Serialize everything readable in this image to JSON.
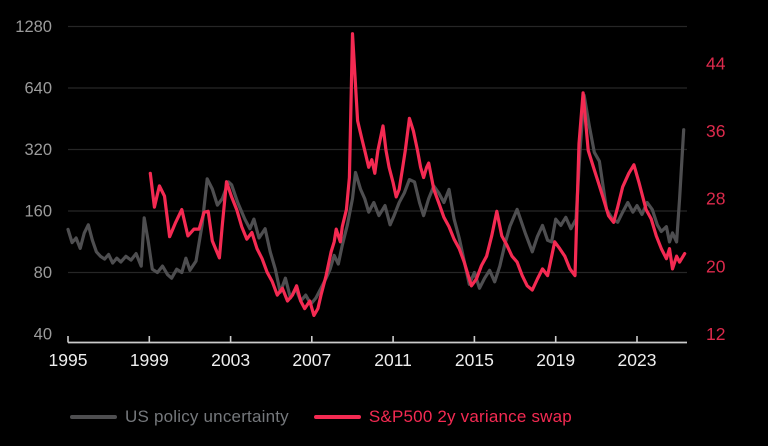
{
  "colors": {
    "background": "#000000",
    "grid": "#262626",
    "axis_line": "#cccccc",
    "x_tick_label": "#eeeeee",
    "left_tick_label": "#9b9b9b",
    "right_tick_label": "#dd2a4c",
    "gray_series": "#4e4e50",
    "red_series": "#f42a52",
    "legend_gray_text": "#75787c",
    "legend_red_text": "#f42a52"
  },
  "chart_data": {
    "type": "line",
    "title": "",
    "grid": "horizontal",
    "legend_position": "bottom",
    "x_axis": {
      "ticks": [
        1995,
        1999,
        2003,
        2007,
        2011,
        2015,
        2019,
        2023
      ],
      "range": [
        1995,
        2026
      ]
    },
    "left_axis": {
      "scale": "log2",
      "ticks": [
        40,
        80,
        160,
        320,
        640,
        1280
      ],
      "range": [
        40,
        1280
      ]
    },
    "right_axis": {
      "scale": "linear",
      "ticks": [
        12,
        20,
        28,
        36,
        44
      ],
      "range": [
        12,
        48.5
      ]
    },
    "series": [
      {
        "name": "US policy uncertainty",
        "axis": "left",
        "color": "#4e4e50",
        "points": [
          [
            1995.0,
            130
          ],
          [
            1995.2,
            112
          ],
          [
            1995.4,
            118
          ],
          [
            1995.6,
            105
          ],
          [
            1995.8,
            125
          ],
          [
            1996.0,
            137
          ],
          [
            1996.2,
            115
          ],
          [
            1996.4,
            101
          ],
          [
            1996.6,
            96
          ],
          [
            1996.8,
            93
          ],
          [
            1997.0,
            98
          ],
          [
            1997.2,
            89
          ],
          [
            1997.4,
            94
          ],
          [
            1997.6,
            90
          ],
          [
            1997.85,
            96
          ],
          [
            1998.1,
            92
          ],
          [
            1998.35,
            99
          ],
          [
            1998.6,
            86
          ],
          [
            1998.75,
            148
          ],
          [
            1998.95,
            113
          ],
          [
            1999.15,
            83
          ],
          [
            1999.4,
            80
          ],
          [
            1999.65,
            86
          ],
          [
            1999.9,
            78
          ],
          [
            2000.1,
            75
          ],
          [
            2000.35,
            83
          ],
          [
            2000.6,
            80
          ],
          [
            2000.8,
            94
          ],
          [
            2001.0,
            82
          ],
          [
            2001.3,
            91
          ],
          [
            2001.6,
            137
          ],
          [
            2001.85,
            230
          ],
          [
            2002.1,
            205
          ],
          [
            2002.35,
            171
          ],
          [
            2002.6,
            184
          ],
          [
            2002.9,
            222
          ],
          [
            2003.05,
            215
          ],
          [
            2003.35,
            176
          ],
          [
            2003.7,
            146
          ],
          [
            2003.95,
            131
          ],
          [
            2004.15,
            146
          ],
          [
            2004.4,
            118
          ],
          [
            2004.7,
            131
          ],
          [
            2004.95,
            101
          ],
          [
            2005.2,
            83
          ],
          [
            2005.45,
            64
          ],
          [
            2005.7,
            75
          ],
          [
            2005.95,
            60
          ],
          [
            2006.2,
            67
          ],
          [
            2006.45,
            58
          ],
          [
            2006.7,
            62
          ],
          [
            2006.95,
            56
          ],
          [
            2007.2,
            60
          ],
          [
            2007.45,
            67
          ],
          [
            2007.7,
            75
          ],
          [
            2007.9,
            83
          ],
          [
            2008.1,
            97
          ],
          [
            2008.3,
            88
          ],
          [
            2008.5,
            109
          ],
          [
            2008.75,
            137
          ],
          [
            2009.0,
            184
          ],
          [
            2009.15,
            247
          ],
          [
            2009.4,
            204
          ],
          [
            2009.6,
            184
          ],
          [
            2009.8,
            158
          ],
          [
            2010.05,
            176
          ],
          [
            2010.3,
            152
          ],
          [
            2010.6,
            170
          ],
          [
            2010.85,
            137
          ],
          [
            2011.05,
            152
          ],
          [
            2011.3,
            176
          ],
          [
            2011.55,
            196
          ],
          [
            2011.8,
            228
          ],
          [
            2012.05,
            222
          ],
          [
            2012.3,
            176
          ],
          [
            2012.5,
            152
          ],
          [
            2012.75,
            184
          ],
          [
            2013.0,
            212
          ],
          [
            2013.25,
            196
          ],
          [
            2013.5,
            176
          ],
          [
            2013.75,
            204
          ],
          [
            2014.0,
            146
          ],
          [
            2014.25,
            118
          ],
          [
            2014.5,
            91
          ],
          [
            2014.75,
            70
          ],
          [
            2015.0,
            80
          ],
          [
            2015.25,
            67
          ],
          [
            2015.5,
            75
          ],
          [
            2015.75,
            82
          ],
          [
            2016.0,
            72
          ],
          [
            2016.25,
            86
          ],
          [
            2016.5,
            110
          ],
          [
            2016.75,
            135
          ],
          [
            2017.1,
            163
          ],
          [
            2017.5,
            125
          ],
          [
            2017.85,
            101
          ],
          [
            2018.1,
            120
          ],
          [
            2018.35,
            136
          ],
          [
            2018.6,
            115
          ],
          [
            2018.8,
            113
          ],
          [
            2019.0,
            146
          ],
          [
            2019.25,
            136
          ],
          [
            2019.5,
            149
          ],
          [
            2019.75,
            131
          ],
          [
            2020.0,
            146
          ],
          [
            2020.2,
            320
          ],
          [
            2020.4,
            590
          ],
          [
            2020.65,
            420
          ],
          [
            2020.9,
            310
          ],
          [
            2021.15,
            280
          ],
          [
            2021.5,
            163
          ],
          [
            2021.8,
            146
          ],
          [
            2022.05,
            141
          ],
          [
            2022.3,
            158
          ],
          [
            2022.55,
            176
          ],
          [
            2022.8,
            158
          ],
          [
            2023.0,
            170
          ],
          [
            2023.25,
            154
          ],
          [
            2023.5,
            176
          ],
          [
            2023.75,
            163
          ],
          [
            2024.0,
            137
          ],
          [
            2024.2,
            127
          ],
          [
            2024.45,
            134
          ],
          [
            2024.6,
            113
          ],
          [
            2024.75,
            125
          ],
          [
            2024.95,
            113
          ],
          [
            2025.1,
            184
          ],
          [
            2025.3,
            400
          ]
        ]
      },
      {
        "name": "S&P500 2y variance swap",
        "axis": "right",
        "color": "#f42a52",
        "points": [
          [
            1999.05,
            31
          ],
          [
            1999.25,
            27
          ],
          [
            1999.5,
            29.5
          ],
          [
            1999.75,
            28.3
          ],
          [
            2000.0,
            23.5
          ],
          [
            2000.3,
            25.2
          ],
          [
            2000.6,
            26.7
          ],
          [
            2000.9,
            23.6
          ],
          [
            2001.2,
            24.4
          ],
          [
            2001.45,
            24.4
          ],
          [
            2001.7,
            26.4
          ],
          [
            2001.9,
            26.5
          ],
          [
            2002.1,
            23.0
          ],
          [
            2002.45,
            21.0
          ],
          [
            2002.6,
            25.0
          ],
          [
            2002.8,
            30.0
          ],
          [
            2003.05,
            28.2
          ],
          [
            2003.3,
            26.7
          ],
          [
            2003.55,
            24.7
          ],
          [
            2003.8,
            23.2
          ],
          [
            2004.05,
            24.0
          ],
          [
            2004.3,
            22.1
          ],
          [
            2004.55,
            20.9
          ],
          [
            2004.8,
            19.3
          ],
          [
            2005.05,
            18.2
          ],
          [
            2005.3,
            16.6
          ],
          [
            2005.55,
            17.4
          ],
          [
            2005.8,
            15.9
          ],
          [
            2006.05,
            16.6
          ],
          [
            2006.25,
            17.7
          ],
          [
            2006.45,
            15.9
          ],
          [
            2006.65,
            15.0
          ],
          [
            2006.9,
            15.9
          ],
          [
            2007.1,
            14.2
          ],
          [
            2007.3,
            15.0
          ],
          [
            2007.45,
            16.6
          ],
          [
            2007.7,
            18.9
          ],
          [
            2007.95,
            21.7
          ],
          [
            2008.1,
            22.9
          ],
          [
            2008.2,
            24.4
          ],
          [
            2008.4,
            22.9
          ],
          [
            2008.5,
            24.7
          ],
          [
            2008.7,
            26.7
          ],
          [
            2008.85,
            30.5
          ],
          [
            2009.0,
            47.5
          ],
          [
            2009.25,
            37.2
          ],
          [
            2009.45,
            35.2
          ],
          [
            2009.6,
            33.7
          ],
          [
            2009.8,
            31.7
          ],
          [
            2009.95,
            32.6
          ],
          [
            2010.1,
            31.0
          ],
          [
            2010.25,
            33.7
          ],
          [
            2010.5,
            36.6
          ],
          [
            2010.65,
            33.7
          ],
          [
            2010.8,
            31.7
          ],
          [
            2011.0,
            29.9
          ],
          [
            2011.15,
            28.2
          ],
          [
            2011.3,
            29.1
          ],
          [
            2011.45,
            31.4
          ],
          [
            2011.6,
            33.7
          ],
          [
            2011.8,
            37.5
          ],
          [
            2012.0,
            36.0
          ],
          [
            2012.2,
            33.7
          ],
          [
            2012.35,
            31.7
          ],
          [
            2012.5,
            30.5
          ],
          [
            2012.65,
            31.7
          ],
          [
            2012.75,
            32.2
          ],
          [
            2013.0,
            29.1
          ],
          [
            2013.25,
            27.5
          ],
          [
            2013.5,
            25.8
          ],
          [
            2013.75,
            24.7
          ],
          [
            2014.0,
            23.2
          ],
          [
            2014.25,
            22.1
          ],
          [
            2014.5,
            20.5
          ],
          [
            2014.7,
            18.9
          ],
          [
            2014.85,
            17.7
          ],
          [
            2015.1,
            18.5
          ],
          [
            2015.35,
            20.1
          ],
          [
            2015.6,
            21.2
          ],
          [
            2015.85,
            23.6
          ],
          [
            2016.1,
            26.5
          ],
          [
            2016.35,
            23.6
          ],
          [
            2016.6,
            22.5
          ],
          [
            2016.85,
            21.2
          ],
          [
            2017.1,
            20.5
          ],
          [
            2017.35,
            18.9
          ],
          [
            2017.6,
            17.7
          ],
          [
            2017.85,
            17.2
          ],
          [
            2018.1,
            18.5
          ],
          [
            2018.35,
            19.7
          ],
          [
            2018.6,
            18.9
          ],
          [
            2018.95,
            22.9
          ],
          [
            2019.2,
            22.1
          ],
          [
            2019.45,
            21.2
          ],
          [
            2019.7,
            19.7
          ],
          [
            2019.95,
            18.9
          ],
          [
            2020.15,
            34.5
          ],
          [
            2020.35,
            40.5
          ],
          [
            2020.6,
            33.7
          ],
          [
            2020.9,
            31.4
          ],
          [
            2021.1,
            29.9
          ],
          [
            2021.35,
            28.0
          ],
          [
            2021.6,
            26.0
          ],
          [
            2021.85,
            25.2
          ],
          [
            2022.05,
            27.0
          ],
          [
            2022.3,
            29.4
          ],
          [
            2022.6,
            31.0
          ],
          [
            2022.85,
            32.0
          ],
          [
            2023.1,
            29.9
          ],
          [
            2023.45,
            26.7
          ],
          [
            2023.7,
            25.6
          ],
          [
            2023.95,
            23.6
          ],
          [
            2024.2,
            22.1
          ],
          [
            2024.45,
            20.9
          ],
          [
            2024.6,
            22.1
          ],
          [
            2024.75,
            19.7
          ],
          [
            2024.95,
            21.2
          ],
          [
            2025.1,
            20.5
          ],
          [
            2025.35,
            21.5
          ]
        ]
      }
    ]
  },
  "legend": {
    "items": [
      {
        "label": "US policy uncertainty"
      },
      {
        "label": "S&P500 2y variance swap"
      }
    ]
  }
}
